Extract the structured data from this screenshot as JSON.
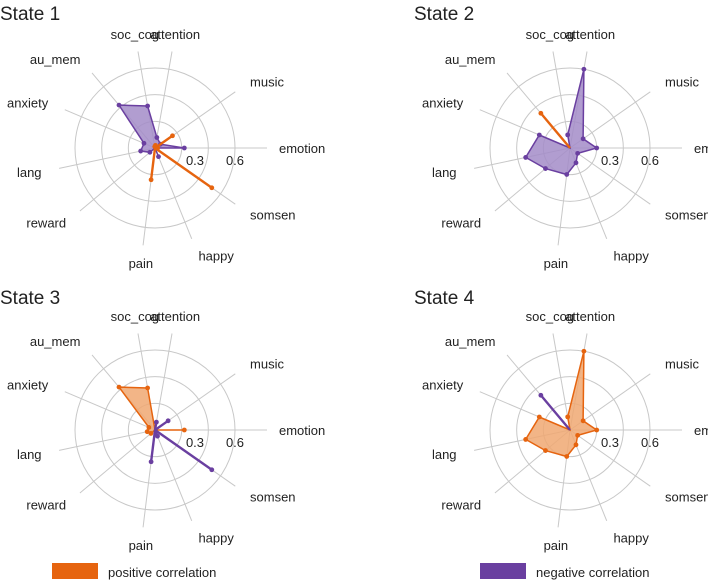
{
  "colors": {
    "positive": "#E6640F",
    "negative": "#6A3FA0",
    "positive_fill": "#F0A872",
    "negative_fill": "#A38CC8",
    "grid": "#C8C8C8",
    "text": "#222222"
  },
  "legend": [
    {
      "label": "positive correlation",
      "color": "#E6640F"
    },
    {
      "label": "negative correlation",
      "color": "#6A3FA0"
    }
  ],
  "chart_data": [
    {
      "type": "radar",
      "title": "State 1",
      "axes": [
        "emotion",
        "music",
        "attention",
        "soc_cog",
        "au_mem",
        "anxiety",
        "lang",
        "reward",
        "pain",
        "happy",
        "somsen"
      ],
      "rmax": 0.6,
      "rings": [
        0.2,
        0.4,
        0.6
      ],
      "tick_labels": [
        "0.3",
        "0.6"
      ],
      "filled_sign": "negative",
      "series": [
        {
          "name": "positive correlation",
          "values": [
            0.02,
            0.16,
            0.02,
            0.01,
            0.0,
            0.0,
            0.0,
            0.0,
            0.24,
            0.0,
            0.52
          ]
        },
        {
          "name": "negative correlation",
          "values": [
            0.22,
            0.05,
            0.08,
            0.32,
            0.42,
            0.09,
            0.11,
            0.05,
            0.0,
            0.07,
            0.0
          ]
        }
      ]
    },
    {
      "type": "radar",
      "title": "State 2",
      "axes": [
        "emotion",
        "music",
        "attention",
        "soc_cog",
        "au_mem",
        "anxiety",
        "lang",
        "reward",
        "pain",
        "happy",
        "somsen"
      ],
      "rmax": 0.6,
      "rings": [
        0.2,
        0.4,
        0.6
      ],
      "tick_labels": [
        "0.3",
        "0.6"
      ],
      "filled_sign": "negative",
      "series": [
        {
          "name": "positive correlation",
          "values": [
            0.0,
            0.0,
            0.0,
            0.0,
            0.34,
            0.0,
            0.0,
            0.0,
            0.0,
            0.0,
            0.0
          ]
        },
        {
          "name": "negative correlation",
          "values": [
            0.2,
            0.12,
            0.6,
            0.1,
            0.0,
            0.25,
            0.34,
            0.24,
            0.2,
            0.12,
            0.07
          ]
        }
      ]
    },
    {
      "type": "radar",
      "title": "State 3",
      "axes": [
        "emotion",
        "music",
        "attention",
        "soc_cog",
        "au_mem",
        "anxiety",
        "lang",
        "reward",
        "pain",
        "happy",
        "somsen"
      ],
      "rmax": 0.6,
      "rings": [
        0.2,
        0.4,
        0.6
      ],
      "tick_labels": [
        "0.3",
        "0.6"
      ],
      "filled_sign": "positive",
      "series": [
        {
          "name": "positive correlation",
          "values": [
            0.22,
            0.0,
            0.0,
            0.32,
            0.42,
            0.05,
            0.06,
            0.04,
            0.0,
            0.0,
            0.0
          ]
        },
        {
          "name": "negative correlation",
          "values": [
            0.0,
            0.12,
            0.06,
            0.0,
            0.0,
            0.0,
            0.0,
            0.0,
            0.24,
            0.05,
            0.52
          ]
        }
      ]
    },
    {
      "type": "radar",
      "title": "State 4",
      "axes": [
        "emotion",
        "music",
        "attention",
        "soc_cog",
        "au_mem",
        "anxiety",
        "lang",
        "reward",
        "pain",
        "happy",
        "somsen"
      ],
      "rmax": 0.6,
      "rings": [
        0.2,
        0.4,
        0.6
      ],
      "tick_labels": [
        "0.3",
        "0.6"
      ],
      "filled_sign": "positive",
      "series": [
        {
          "name": "positive correlation",
          "values": [
            0.2,
            0.12,
            0.6,
            0.1,
            0.0,
            0.25,
            0.34,
            0.24,
            0.2,
            0.12,
            0.07
          ]
        },
        {
          "name": "negative correlation",
          "values": [
            0.0,
            0.0,
            0.0,
            0.0,
            0.34,
            0.0,
            0.0,
            0.0,
            0.0,
            0.0,
            0.0
          ]
        }
      ]
    }
  ]
}
